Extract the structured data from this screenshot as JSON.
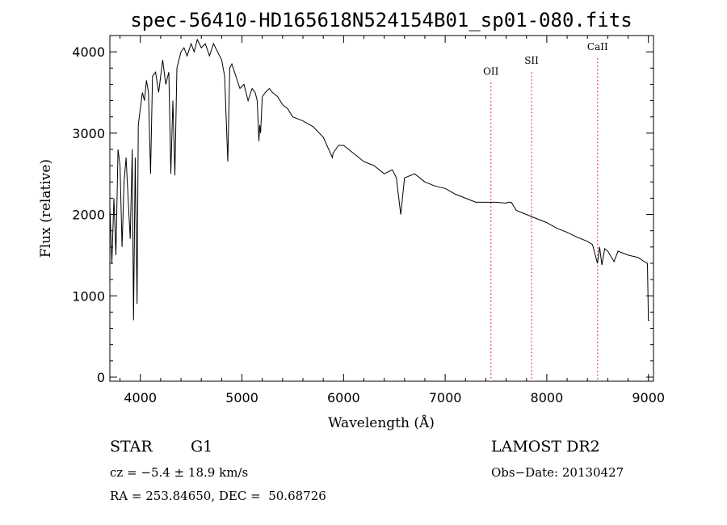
{
  "chart_data": {
    "type": "line",
    "title": "spec-56410-HD165618N524154B01_sp01-080.fits",
    "xlabel": "Wavelength (Å)",
    "ylabel": "Flux (relative)",
    "xlim": [
      3700,
      9050
    ],
    "ylim": [
      -50,
      4200
    ],
    "x_ticks": [
      4000,
      5000,
      6000,
      7000,
      8000,
      9000
    ],
    "y_ticks": [
      0,
      1000,
      2000,
      3000,
      4000
    ],
    "series": [
      {
        "name": "spectrum",
        "color": "#000000",
        "x": [
          3700,
          3720,
          3740,
          3760,
          3780,
          3800,
          3820,
          3840,
          3860,
          3880,
          3900,
          3920,
          3933,
          3950,
          3968,
          3980,
          4000,
          4020,
          4040,
          4060,
          4080,
          4101,
          4120,
          4150,
          4180,
          4200,
          4220,
          4250,
          4280,
          4300,
          4320,
          4340,
          4360,
          4380,
          4400,
          4430,
          4460,
          4500,
          4530,
          4560,
          4600,
          4640,
          4680,
          4720,
          4760,
          4800,
          4830,
          4861,
          4880,
          4900,
          4940,
          4980,
          5020,
          5060,
          5100,
          5130,
          5150,
          5167,
          5175,
          5183,
          5200,
          5230,
          5270,
          5300,
          5350,
          5400,
          5450,
          5500,
          5600,
          5700,
          5800,
          5890,
          5896,
          5950,
          6000,
          6100,
          6200,
          6300,
          6400,
          6480,
          6520,
          6563,
          6600,
          6700,
          6800,
          6900,
          7000,
          7100,
          7200,
          7300,
          7400,
          7500,
          7600,
          7620,
          7650,
          7700,
          7800,
          7900,
          8000,
          8100,
          8200,
          8300,
          8400,
          8450,
          8498,
          8520,
          8542,
          8570,
          8600,
          8662,
          8700,
          8800,
          8900,
          8960,
          8990,
          9000,
          9010
        ],
        "values": [
          2100,
          1400,
          2200,
          1500,
          2800,
          2600,
          1600,
          2400,
          2700,
          2200,
          1700,
          2800,
          700,
          2700,
          900,
          3100,
          3300,
          3500,
          3400,
          3650,
          3500,
          2500,
          3700,
          3750,
          3500,
          3700,
          3900,
          3600,
          3750,
          2500,
          3400,
          2480,
          3800,
          3900,
          4000,
          4050,
          3950,
          4100,
          4000,
          4150,
          4050,
          4100,
          3950,
          4100,
          4000,
          3900,
          3700,
          2650,
          3800,
          3850,
          3700,
          3550,
          3600,
          3400,
          3550,
          3500,
          3400,
          2900,
          3100,
          3000,
          3450,
          3500,
          3550,
          3500,
          3450,
          3350,
          3300,
          3200,
          3150,
          3080,
          2950,
          2700,
          2750,
          2850,
          2850,
          2750,
          2650,
          2600,
          2500,
          2550,
          2450,
          2000,
          2450,
          2500,
          2400,
          2350,
          2320,
          2250,
          2200,
          2150,
          2150,
          2150,
          2140,
          2150,
          2150,
          2050,
          2000,
          1950,
          1900,
          1830,
          1780,
          1720,
          1670,
          1630,
          1400,
          1600,
          1380,
          1580,
          1550,
          1420,
          1550,
          1500,
          1470,
          1420,
          1400,
          700,
          700
        ]
      }
    ],
    "annotations": [
      {
        "label": "OII",
        "x": 7450,
        "label_y": 3720
      },
      {
        "label": "SII",
        "x": 7850,
        "label_y": 3850
      },
      {
        "label": "CaII",
        "x": 8500,
        "label_y": 4020
      }
    ],
    "grid": false,
    "legend": "none"
  },
  "info": {
    "object_type": "STAR",
    "subclass": "G1",
    "survey": "LAMOST DR2",
    "cz": "cz = −5.4 ± 18.9 km/s",
    "obs_date": "Obs−Date: 20130427",
    "coords": "RA = 253.84650, DEC =  50.68726"
  }
}
